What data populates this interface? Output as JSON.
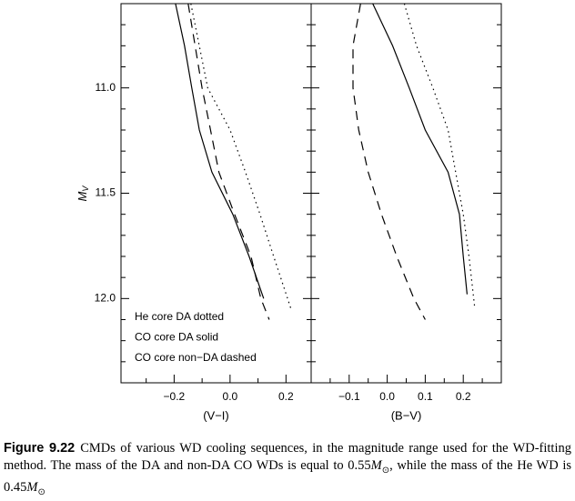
{
  "chart_data": [
    {
      "type": "line",
      "ylabel": "M",
      "ylabel_sub": "V",
      "xlabel": "(V−I)",
      "xlim": [
        -0.39,
        0.29
      ],
      "xticks": [
        {
          "value": -0.2,
          "label": "−0.2"
        },
        {
          "value": 0,
          "label": "0.0"
        },
        0.2
      ],
      "xminor": [
        -0.3,
        -0.1,
        0.1
      ],
      "ylim": [
        12.4,
        10.6
      ],
      "yticks": [
        {
          "value": 11,
          "label": "11.0"
        },
        11.5,
        {
          "value": 12,
          "label": "12.0"
        }
      ],
      "yminor": [
        10.7,
        10.8,
        10.9,
        11.1,
        11.2,
        11.3,
        11.4,
        11.6,
        11.7,
        11.8,
        11.9,
        12.1,
        12.2,
        12.3
      ],
      "show_ytick_labels": true,
      "series": [
        {
          "name": "He core DA dotted",
          "color": "#000000",
          "style": "dotted",
          "x": [
            -0.14,
            -0.08,
            0.0,
            0.055,
            0.107,
            0.156,
            0.218
          ],
          "values": [
            10.6,
            11.0,
            11.2,
            11.4,
            11.6,
            11.8,
            12.05
          ]
        },
        {
          "name": "CO core DA solid",
          "color": "#000000",
          "style": "solid",
          "x": [
            -0.195,
            -0.163,
            -0.137,
            -0.11,
            -0.065,
            0.01,
            0.068,
            0.12
          ],
          "values": [
            10.6,
            10.8,
            11.0,
            11.2,
            11.4,
            11.6,
            11.8,
            12.0
          ]
        },
        {
          "name": "CO core non−DA dashed",
          "color": "#000000",
          "style": "dashed",
          "x": [
            -0.15,
            -0.1,
            -0.07,
            -0.04,
            0.016,
            0.075,
            0.11,
            0.14
          ],
          "values": [
            10.6,
            11.0,
            11.2,
            11.4,
            11.6,
            11.8,
            12.0,
            12.1
          ]
        }
      ]
    },
    {
      "type": "line",
      "xlabel": "(B−V)",
      "xlim": [
        -0.2,
        0.3
      ],
      "xticks": [
        {
          "value": -0.1,
          "label": "−0.1"
        },
        {
          "value": 0,
          "label": "0.0"
        },
        0.1,
        0.2
      ],
      "xminor": [
        -0.15,
        -0.05,
        0.05,
        0.15,
        0.25
      ],
      "ylim": [
        12.4,
        10.6
      ],
      "yticks": [
        11,
        11.5,
        12
      ],
      "yminor": [
        10.7,
        10.8,
        10.9,
        11.1,
        11.2,
        11.3,
        11.4,
        11.6,
        11.7,
        11.8,
        11.9,
        12.1,
        12.2,
        12.3
      ],
      "show_ytick_labels": false,
      "series": [
        {
          "color": "#000000",
          "style": "dotted",
          "x": [
            0.045,
            0.077,
            0.12,
            0.16,
            0.18,
            0.2,
            0.215,
            0.23
          ],
          "values": [
            10.6,
            10.8,
            11.0,
            11.2,
            11.4,
            11.6,
            11.8,
            12.04
          ]
        },
        {
          "color": "#000000",
          "style": "solid",
          "x": [
            -0.038,
            0.014,
            0.058,
            0.1,
            0.16,
            0.19,
            0.2,
            0.21
          ],
          "values": [
            10.6,
            10.8,
            11.0,
            11.2,
            11.4,
            11.6,
            11.8,
            11.98
          ]
        },
        {
          "color": "#000000",
          "style": "dashed",
          "x": [
            -0.07,
            -0.09,
            -0.09,
            -0.075,
            -0.05,
            -0.015,
            0.025,
            0.07,
            0.1
          ],
          "values": [
            10.6,
            10.8,
            11.0,
            11.2,
            11.4,
            11.6,
            11.8,
            12.0,
            12.1
          ]
        }
      ]
    }
  ],
  "caption": {
    "label": "Figure 9.22",
    "segments": [
      {
        "t": "CMDs of various WD cooling sequences, in the magnitude range used for the WD-fitting method. The mass of the DA and non-DA CO WDs is equal to 0.55",
        "s": "normal"
      },
      {
        "t": "M",
        "s": "italic"
      },
      {
        "t": "⊙",
        "s": "sub"
      },
      {
        "t": ", while the mass of the He WD is 0.45",
        "s": "normal"
      },
      {
        "t": "M",
        "s": "italic"
      },
      {
        "t": "⊙",
        "s": "sub"
      }
    ]
  }
}
